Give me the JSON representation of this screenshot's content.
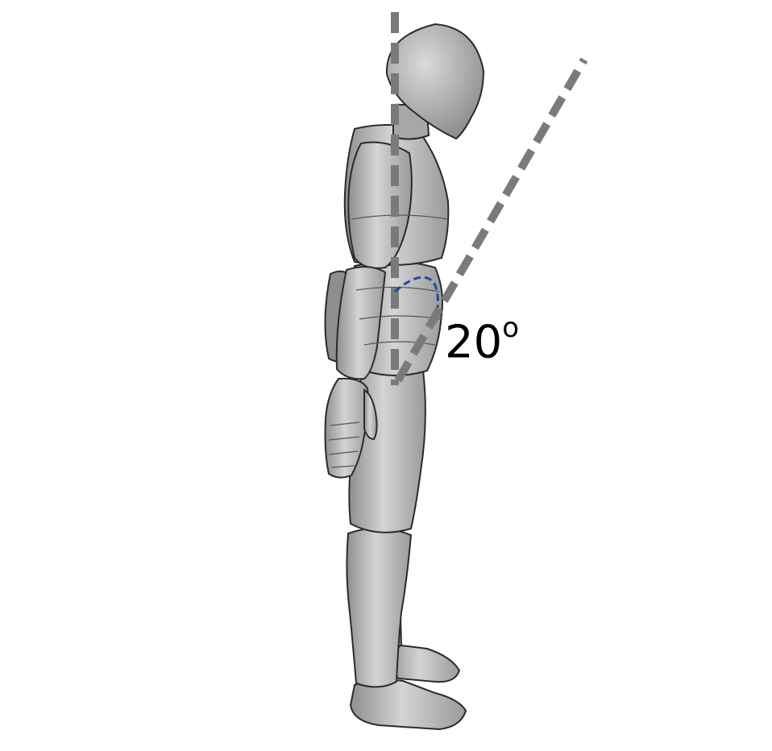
{
  "figure": {
    "angle_value": "20",
    "angle_unit_symbol": "o"
  },
  "colors": {
    "background": "#ffffff",
    "mannequin_fill": "#a9a9a9",
    "mannequin_highlight": "#d6d6d6",
    "mannequin_outline": "#2b2b2b",
    "reference_line": "#7a7a7a",
    "angle_arc": "#1f4e9c",
    "label_text": "#000000"
  },
  "icons": {
    "figure": "mannequin-side-view-figure",
    "vertical_reference": "dashed-vertical-line",
    "inclined_reference": "dashed-inclined-line",
    "angle_marker": "dashed-arc-icon"
  }
}
